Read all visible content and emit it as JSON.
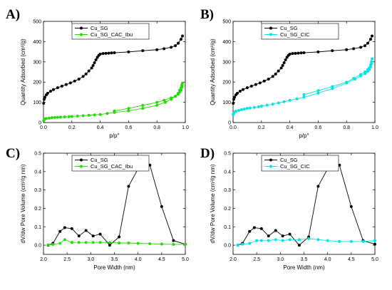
{
  "chart_data": [
    {
      "panel_label": "A)",
      "type": "line",
      "xlabel": "p/p°",
      "ylabel": "Quantity Adsorbed (cm³/g)",
      "xlim": [
        0,
        1.0
      ],
      "ylim": [
        0,
        500
      ],
      "xticks": [
        0.0,
        0.2,
        0.4,
        0.6,
        0.8,
        1.0
      ],
      "yticks": [
        0,
        100,
        200,
        300,
        400,
        500
      ],
      "xtick_decimals": 1,
      "ytick_decimals": 0,
      "legend_position": "top-left",
      "series": [
        {
          "name": "Cu_SG",
          "color": "#000000",
          "x": [
            0.001,
            0.005,
            0.01,
            0.02,
            0.03,
            0.05,
            0.07,
            0.1,
            0.13,
            0.16,
            0.19,
            0.22,
            0.25,
            0.28,
            0.3,
            0.32,
            0.34,
            0.35,
            0.36,
            0.37,
            0.38,
            0.39,
            0.4,
            0.42,
            0.44,
            0.46,
            0.48,
            0.5,
            0.6,
            0.7,
            0.8,
            0.85,
            0.9,
            0.93,
            0.95,
            0.97,
            0.98
          ],
          "y": [
            95,
            115,
            125,
            137,
            145,
            155,
            163,
            172,
            180,
            188,
            196,
            205,
            215,
            228,
            240,
            255,
            270,
            282,
            296,
            310,
            322,
            332,
            338,
            341,
            342,
            343,
            344,
            345,
            349,
            355,
            360,
            365,
            372,
            380,
            392,
            412,
            428
          ]
        },
        {
          "name": "Cu_SG_CAC_Ibu",
          "color": "#22dd00",
          "x": [
            0.001,
            0.005,
            0.01,
            0.02,
            0.04,
            0.06,
            0.08,
            0.1,
            0.12,
            0.15,
            0.18,
            0.2,
            0.24,
            0.28,
            0.32,
            0.36,
            0.4,
            0.45,
            0.5,
            0.6,
            0.7,
            0.8,
            0.86,
            0.9,
            0.93,
            0.95,
            0.96,
            0.97,
            0.975,
            0.98,
            0.975,
            0.97,
            0.96,
            0.95,
            0.93,
            0.9,
            0.85,
            0.8,
            0.7,
            0.6,
            0.5
          ],
          "y": [
            10,
            15,
            18,
            20,
            22,
            24,
            25,
            26,
            27,
            28,
            29,
            30,
            32,
            34,
            36,
            38,
            40,
            45,
            50,
            58,
            70,
            85,
            100,
            115,
            130,
            145,
            160,
            172,
            185,
            195,
            175,
            160,
            150,
            140,
            130,
            122,
            110,
            100,
            85,
            70,
            57
          ]
        }
      ]
    },
    {
      "panel_label": "B)",
      "type": "line",
      "xlabel": "p/p°",
      "ylabel": "Quantity Adsorbed (cm³/g)",
      "xlim": [
        0,
        1.0
      ],
      "ylim": [
        0,
        500
      ],
      "xticks": [
        0.0,
        0.2,
        0.4,
        0.6,
        0.8,
        1.0
      ],
      "yticks": [
        0,
        100,
        200,
        300,
        400,
        500
      ],
      "xtick_decimals": 1,
      "ytick_decimals": 0,
      "legend_position": "top-left",
      "series": [
        {
          "name": "Cu_SG",
          "color": "#000000",
          "x": [
            0.001,
            0.005,
            0.01,
            0.02,
            0.03,
            0.05,
            0.07,
            0.1,
            0.13,
            0.16,
            0.19,
            0.22,
            0.25,
            0.28,
            0.3,
            0.32,
            0.34,
            0.35,
            0.36,
            0.37,
            0.38,
            0.39,
            0.4,
            0.42,
            0.44,
            0.46,
            0.48,
            0.5,
            0.6,
            0.7,
            0.8,
            0.85,
            0.9,
            0.93,
            0.95,
            0.97,
            0.98
          ],
          "y": [
            95,
            115,
            125,
            137,
            145,
            155,
            163,
            172,
            180,
            188,
            196,
            205,
            215,
            228,
            240,
            255,
            270,
            282,
            296,
            310,
            322,
            332,
            338,
            341,
            342,
            343,
            344,
            345,
            349,
            355,
            360,
            365,
            372,
            380,
            392,
            412,
            428
          ]
        },
        {
          "name": "Cu_SG_CIC",
          "color": "#00e5e5",
          "x": [
            0.001,
            0.005,
            0.01,
            0.02,
            0.04,
            0.06,
            0.08,
            0.1,
            0.12,
            0.15,
            0.18,
            0.2,
            0.24,
            0.28,
            0.32,
            0.36,
            0.4,
            0.45,
            0.5,
            0.6,
            0.7,
            0.8,
            0.86,
            0.9,
            0.93,
            0.95,
            0.96,
            0.97,
            0.975,
            0.98,
            0.975,
            0.97,
            0.96,
            0.95,
            0.93,
            0.9,
            0.85,
            0.8,
            0.7,
            0.6,
            0.5
          ],
          "y": [
            40,
            48,
            52,
            56,
            60,
            64,
            67,
            70,
            72,
            75,
            78,
            81,
            86,
            91,
            97,
            103,
            110,
            117,
            125,
            145,
            168,
            195,
            215,
            230,
            242,
            252,
            262,
            275,
            290,
            315,
            300,
            285,
            270,
            262,
            250,
            238,
            218,
            200,
            178,
            158,
            138
          ]
        }
      ]
    },
    {
      "panel_label": "C)",
      "type": "line",
      "xlabel": "Pore Width (nm)",
      "ylabel": "dV/dw Pore Volume (cm³/g nm)",
      "xlim": [
        2.0,
        5.0
      ],
      "ylim": [
        -0.05,
        0.5
      ],
      "xticks": [
        2.0,
        2.5,
        3.0,
        3.5,
        4.0,
        4.5,
        5.0
      ],
      "yticks": [
        0.0,
        0.1,
        0.2,
        0.3,
        0.4,
        0.5
      ],
      "xtick_decimals": 1,
      "ytick_decimals": 1,
      "legend_position": "top-left",
      "series": [
        {
          "name": "Cu_SG",
          "color": "#000000",
          "x": [
            2.1,
            2.2,
            2.35,
            2.45,
            2.6,
            2.75,
            2.9,
            3.05,
            3.2,
            3.4,
            3.6,
            3.8,
            4.0,
            4.25,
            4.5,
            4.75,
            5.0
          ],
          "y": [
            0.0,
            0.01,
            0.075,
            0.095,
            0.09,
            0.05,
            0.08,
            0.05,
            0.06,
            0.0,
            0.045,
            0.32,
            0.415,
            0.435,
            0.21,
            0.025,
            0.005
          ]
        },
        {
          "name": "Cu_SG_CAC_Ibu",
          "color": "#22dd00",
          "x": [
            2.1,
            2.2,
            2.35,
            2.45,
            2.6,
            2.75,
            2.9,
            3.05,
            3.2,
            3.4,
            3.6,
            3.8,
            4.0,
            4.25,
            4.5,
            4.75,
            5.0
          ],
          "y": [
            0.002,
            0.004,
            0.01,
            0.03,
            0.015,
            0.015,
            0.015,
            0.015,
            0.015,
            0.014,
            0.012,
            0.012,
            0.01,
            0.008,
            0.006,
            0.004,
            0.005
          ]
        }
      ]
    },
    {
      "panel_label": "D)",
      "type": "line",
      "xlabel": "Pore Width (nm)",
      "ylabel": "dV/dw Pore Volume (cm³/g nm)",
      "xlim": [
        2.0,
        5.0
      ],
      "ylim": [
        -0.05,
        0.5
      ],
      "xticks": [
        2.0,
        2.5,
        3.0,
        3.5,
        4.0,
        4.5,
        5.0
      ],
      "yticks": [
        0.0,
        0.1,
        0.2,
        0.3,
        0.4,
        0.5
      ],
      "xtick_decimals": 1,
      "ytick_decimals": 1,
      "legend_position": "top-left",
      "series": [
        {
          "name": "Cu_SG",
          "color": "#000000",
          "x": [
            2.1,
            2.2,
            2.35,
            2.45,
            2.6,
            2.75,
            2.9,
            3.05,
            3.2,
            3.4,
            3.6,
            3.8,
            4.0,
            4.25,
            4.5,
            4.75,
            5.0
          ],
          "y": [
            0.0,
            0.01,
            0.075,
            0.095,
            0.09,
            0.05,
            0.08,
            0.05,
            0.06,
            0.0,
            0.045,
            0.32,
            0.415,
            0.435,
            0.21,
            0.025,
            0.005
          ]
        },
        {
          "name": "Cu_SG_CIC",
          "color": "#00e5e5",
          "x": [
            2.1,
            2.2,
            2.35,
            2.5,
            2.6,
            2.75,
            2.9,
            3.05,
            3.2,
            3.4,
            3.6,
            3.8,
            4.0,
            4.25,
            4.5,
            4.75,
            5.0
          ],
          "y": [
            0.0,
            0.005,
            0.01,
            0.025,
            0.025,
            0.025,
            0.03,
            0.025,
            0.03,
            0.03,
            0.035,
            0.03,
            0.025,
            0.02,
            0.02,
            0.02,
            0.025
          ]
        }
      ]
    }
  ]
}
